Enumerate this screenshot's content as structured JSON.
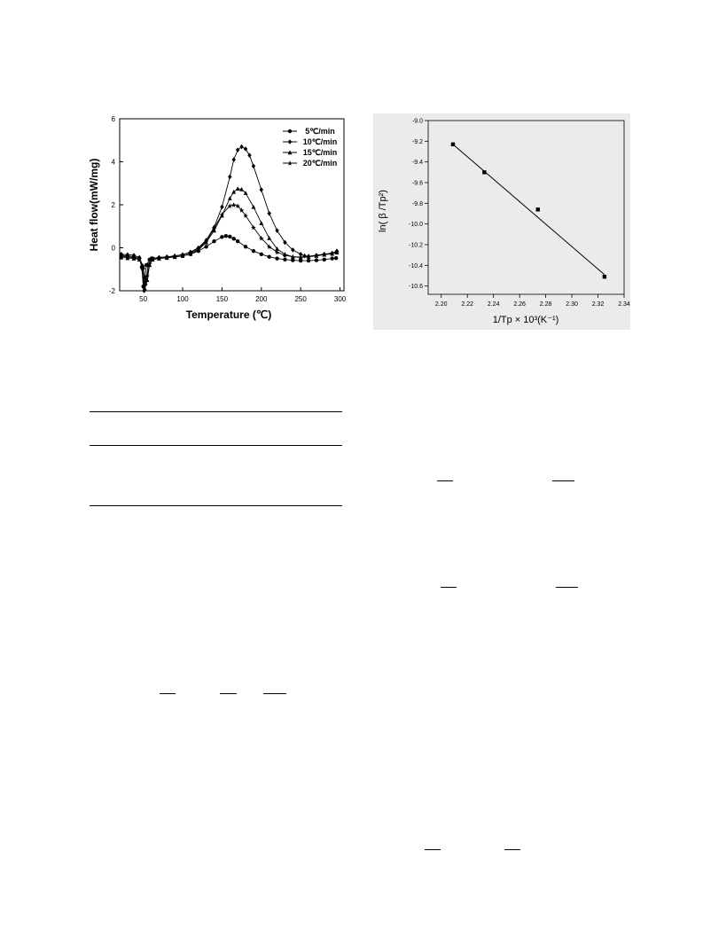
{
  "chart_data": [
    {
      "type": "line",
      "xlabel": "Temperature (℃)",
      "ylabel": "Heat flow(mW/mg)",
      "xlim": [
        20,
        305
      ],
      "ylim": [
        -2,
        6
      ],
      "x_ticks": [
        "50",
        "100",
        "150",
        "200",
        "250",
        "300"
      ],
      "y_ticks": [
        "-2",
        "0",
        "2",
        "4",
        "6"
      ],
      "legend_position": "top-right",
      "grid": false,
      "series": [
        {
          "name": "5℃/min",
          "marker": "circle",
          "x": [
            22,
            30,
            38,
            45,
            48,
            50,
            52,
            54,
            58,
            62,
            70,
            80,
            90,
            100,
            110,
            120,
            130,
            140,
            150,
            155,
            160,
            165,
            170,
            180,
            190,
            200,
            210,
            220,
            230,
            240,
            250,
            260,
            270,
            280,
            290,
            295
          ],
          "y": [
            -0.35,
            -0.38,
            -0.42,
            -0.5,
            -0.9,
            -1.8,
            -1.4,
            -0.8,
            -0.55,
            -0.5,
            -0.48,
            -0.45,
            -0.42,
            -0.38,
            -0.3,
            -0.15,
            0.05,
            0.3,
            0.5,
            0.55,
            0.52,
            0.42,
            0.3,
            0.05,
            -0.15,
            -0.3,
            -0.42,
            -0.5,
            -0.55,
            -0.58,
            -0.6,
            -0.6,
            -0.58,
            -0.55,
            -0.5,
            -0.48
          ]
        },
        {
          "name": "10℃/min",
          "marker": "diamond",
          "x": [
            22,
            30,
            38,
            45,
            49,
            51,
            53,
            56,
            60,
            70,
            80,
            90,
            100,
            110,
            120,
            130,
            140,
            150,
            160,
            165,
            170,
            175,
            180,
            185,
            190,
            200,
            210,
            220,
            230,
            240,
            250,
            255,
            260,
            270,
            280,
            290,
            296
          ],
          "y": [
            -0.3,
            -0.32,
            -0.35,
            -0.45,
            -1.0,
            -2.0,
            -1.7,
            -0.8,
            -0.5,
            -0.45,
            -0.42,
            -0.38,
            -0.32,
            -0.2,
            0.0,
            0.35,
            0.95,
            1.9,
            3.3,
            4.1,
            4.55,
            4.7,
            4.6,
            4.3,
            3.8,
            2.7,
            1.6,
            0.8,
            0.25,
            -0.1,
            -0.3,
            -0.38,
            -0.4,
            -0.35,
            -0.3,
            -0.25,
            -0.15
          ]
        },
        {
          "name": "15℃/min",
          "marker": "triangle",
          "x": [
            22,
            30,
            38,
            45,
            50,
            52,
            55,
            58,
            62,
            70,
            80,
            90,
            100,
            110,
            120,
            130,
            140,
            150,
            160,
            165,
            170,
            175,
            180,
            190,
            200,
            210,
            220,
            230,
            240,
            250,
            260,
            270,
            280,
            290,
            296
          ],
          "y": [
            -0.45,
            -0.48,
            -0.5,
            -0.55,
            -0.9,
            -1.9,
            -1.5,
            -0.8,
            -0.55,
            -0.5,
            -0.47,
            -0.43,
            -0.38,
            -0.28,
            -0.1,
            0.25,
            0.8,
            1.5,
            2.3,
            2.6,
            2.75,
            2.72,
            2.55,
            1.9,
            1.15,
            0.45,
            -0.05,
            -0.3,
            -0.42,
            -0.45,
            -0.42,
            -0.38,
            -0.32,
            -0.28,
            -0.22
          ]
        },
        {
          "name": "20℃/min",
          "marker": "star",
          "x": [
            22,
            30,
            38,
            45,
            50,
            52,
            55,
            58,
            62,
            70,
            80,
            90,
            100,
            110,
            120,
            130,
            140,
            150,
            160,
            165,
            170,
            175,
            180,
            190,
            200,
            210,
            220,
            230,
            240,
            250,
            260,
            270,
            280,
            290,
            296
          ],
          "y": [
            -0.4,
            -0.43,
            -0.46,
            -0.5,
            -0.85,
            -1.6,
            -1.3,
            -0.75,
            -0.5,
            -0.46,
            -0.43,
            -0.38,
            -0.32,
            -0.22,
            -0.05,
            0.3,
            0.9,
            1.55,
            1.95,
            2.0,
            1.95,
            1.75,
            1.5,
            0.95,
            0.45,
            0.05,
            -0.2,
            -0.35,
            -0.42,
            -0.43,
            -0.4,
            -0.36,
            -0.3,
            -0.25,
            -0.2
          ]
        }
      ]
    },
    {
      "type": "scatter",
      "xlabel": "1/Tp × 10³(K⁻¹)",
      "ylabel": "ln( β /Tp²)",
      "xlim": [
        2.19,
        2.34
      ],
      "ylim": [
        -10.68,
        -9.0
      ],
      "x_ticks": [
        "2.20",
        "2.22",
        "2.24",
        "2.26",
        "2.28",
        "2.30",
        "2.32",
        "2.34"
      ],
      "y_ticks": [
        "-9.0",
        "-9.2",
        "-9.4",
        "-9.6",
        "-9.8",
        "-10.0",
        "-10.2",
        "-10.4",
        "-10.6"
      ],
      "grid": false,
      "background": "#ebebeb",
      "points": [
        {
          "x": 2.209,
          "y": -9.23
        },
        {
          "x": 2.233,
          "y": -9.5
        },
        {
          "x": 2.274,
          "y": -9.86
        },
        {
          "x": 2.325,
          "y": -10.51
        }
      ],
      "fit_line": {
        "x": [
          2.209,
          2.325
        ],
        "y": [
          -9.23,
          -10.49
        ]
      }
    }
  ]
}
